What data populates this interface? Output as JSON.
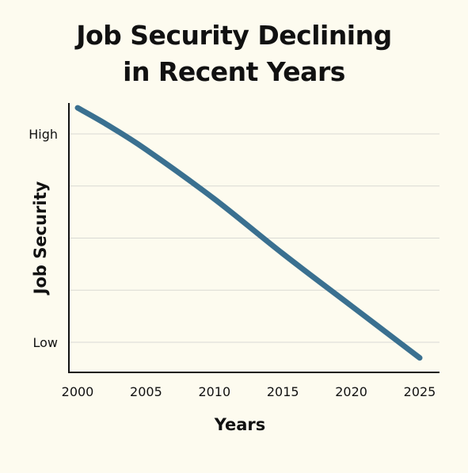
{
  "title_lines": [
    "Job Security Declining",
    "in Recent Years"
  ],
  "colors": {
    "background": "#fdfbef",
    "line": "#3a7090",
    "grid": "#d9d9d4",
    "axis": "#111111"
  },
  "chart_data": {
    "type": "line",
    "title": "Job Security Declining in Recent Years",
    "xlabel": "Years",
    "ylabel": "Job Security",
    "xlim": [
      2000,
      2025
    ],
    "ylim": [
      0,
      5
    ],
    "x_ticks": [
      2000,
      2005,
      2010,
      2015,
      2020,
      2025
    ],
    "y_ticks": [
      {
        "value": 4,
        "label": "High"
      },
      {
        "value": 3,
        "label": ""
      },
      {
        "value": 2,
        "label": ""
      },
      {
        "value": 1,
        "label": ""
      },
      {
        "value": 0,
        "label": "Low"
      }
    ],
    "grid": "horizontal",
    "legend": "none",
    "series": [
      {
        "x": [
          2000,
          2002,
          2005,
          2010,
          2015,
          2020,
          2025
        ],
        "y": [
          4.5,
          4.2,
          3.7,
          2.75,
          1.7,
          0.7,
          -0.3
        ]
      }
    ]
  }
}
